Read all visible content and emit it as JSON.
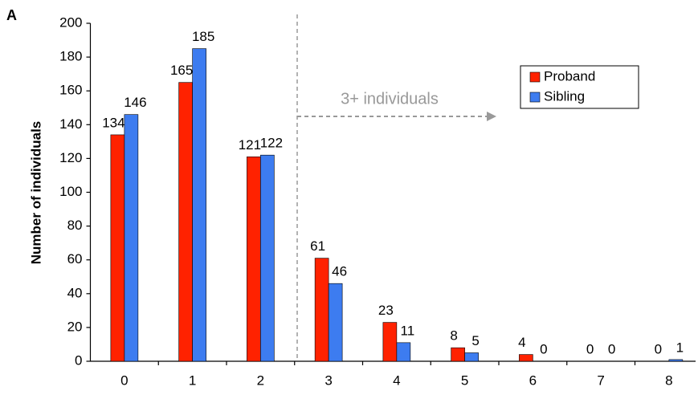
{
  "chart_data": {
    "type": "bar",
    "panel_label": "A",
    "ylabel": "Number of individuals",
    "annotation": "3+ individuals",
    "categories": [
      "0",
      "1",
      "2",
      "3",
      "4",
      "5",
      "6",
      "7",
      "8"
    ],
    "series": [
      {
        "name": "Proband",
        "color": "#ff2200",
        "values": [
          134,
          165,
          121,
          61,
          23,
          8,
          4,
          0,
          0
        ]
      },
      {
        "name": "Sibling",
        "color": "#3d7cf0",
        "values": [
          146,
          185,
          122,
          46,
          11,
          5,
          0,
          0,
          1
        ]
      }
    ],
    "ylim": [
      0,
      200
    ],
    "yticks": [
      0,
      20,
      40,
      60,
      80,
      100,
      120,
      140,
      160,
      180,
      200
    ]
  }
}
